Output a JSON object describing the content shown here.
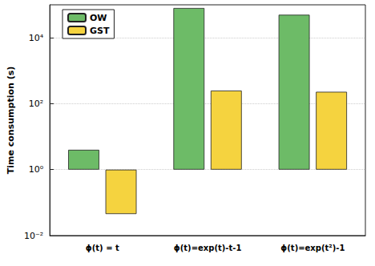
{
  "chart_data": {
    "type": "bar",
    "y_label": "Time consumption (s)",
    "categories": [
      "ϕ(t) = t",
      "ϕ(t)=exp(t)-t-1",
      "ϕ(t)=exp(t²)-1"
    ],
    "series": [
      {
        "name": "OW",
        "color": "#6dbb67",
        "values": [
          4,
          80000,
          50000
        ]
      },
      {
        "name": "GST",
        "color": "#f5d33f",
        "values": [
          0.045,
          250,
          230
        ]
      }
    ],
    "log": "y",
    "ylim": [
      0.01,
      100000
    ],
    "yticks": [
      {
        "value": 0.01,
        "label": "10⁻²"
      },
      {
        "value": 1,
        "label": "10⁰"
      },
      {
        "value": 100,
        "label": "10²"
      },
      {
        "value": 10000,
        "label": "10⁴"
      }
    ],
    "grid": true,
    "legend": "upper left"
  }
}
